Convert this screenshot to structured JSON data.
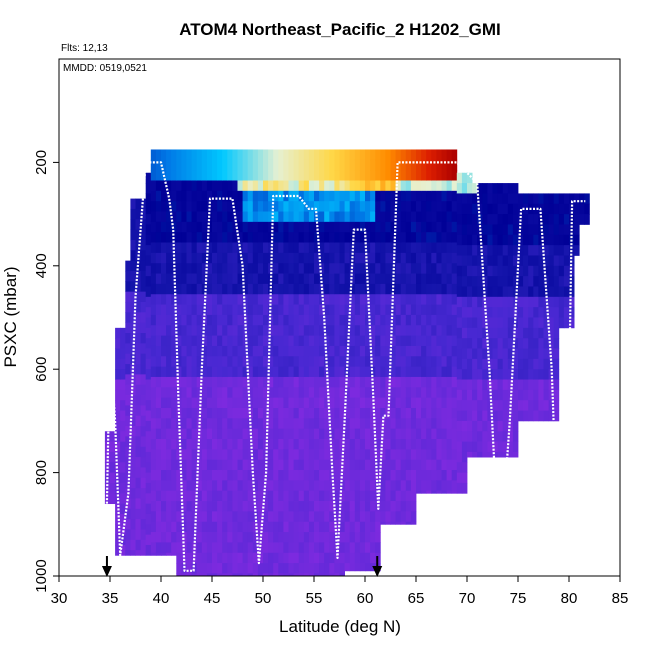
{
  "chart_data": {
    "type": "heatmap",
    "title": "ATOM4 Northeast_Pacific_2 H1202_GMI",
    "flights_label": "Flts: 12,13",
    "mmdd_label": "MMDD: 0519,0521",
    "xlabel": "Latitude (deg N)",
    "ylabel": "PSXC (mbar)",
    "xlim": [
      30,
      85
    ],
    "ylim": [
      1000,
      0
    ],
    "x_ticks": [
      "30",
      "35",
      "40",
      "45",
      "50",
      "55",
      "60",
      "65",
      "70",
      "75",
      "80",
      "85"
    ],
    "y_ticks": [
      "200",
      "400",
      "600",
      "800",
      "1000"
    ],
    "y_tick_values": [
      200,
      400,
      600,
      800,
      1000
    ],
    "arrow_latitudes": [
      34.7,
      61.2
    ],
    "legend": "none",
    "grid": false,
    "colors": {
      "low": "#8a2be2",
      "mid_low": "#1a1aa8",
      "mid": "#00bfff",
      "mid_high": "#ffd24a",
      "high": "#b30000",
      "flight_track": "#ffffff"
    },
    "flight_track": [
      {
        "lat": 34.7,
        "p": 860
      },
      {
        "lat": 35.0,
        "p": 550
      },
      {
        "lat": 35.5,
        "p": 700
      },
      {
        "lat": 36.0,
        "p": 960
      },
      {
        "lat": 36.8,
        "p": 840
      },
      {
        "lat": 37.5,
        "p": 460
      },
      {
        "lat": 38.5,
        "p": 200
      },
      {
        "lat": 40.0,
        "p": 200
      },
      {
        "lat": 40.8,
        "p": 270
      },
      {
        "lat": 41.2,
        "p": 330
      },
      {
        "lat": 41.7,
        "p": 650
      },
      {
        "lat": 42.3,
        "p": 990
      },
      {
        "lat": 43.2,
        "p": 990
      },
      {
        "lat": 44.0,
        "p": 600
      },
      {
        "lat": 44.8,
        "p": 270
      },
      {
        "lat": 47.0,
        "p": 270
      },
      {
        "lat": 48.0,
        "p": 400
      },
      {
        "lat": 49.0,
        "p": 800
      },
      {
        "lat": 49.6,
        "p": 975
      },
      {
        "lat": 50.3,
        "p": 800
      },
      {
        "lat": 51.0,
        "p": 265
      },
      {
        "lat": 53.5,
        "p": 265
      },
      {
        "lat": 54.5,
        "p": 290
      },
      {
        "lat": 55.2,
        "p": 290
      },
      {
        "lat": 56.0,
        "p": 500
      },
      {
        "lat": 56.8,
        "p": 800
      },
      {
        "lat": 57.3,
        "p": 965
      },
      {
        "lat": 58.0,
        "p": 700
      },
      {
        "lat": 58.9,
        "p": 330
      },
      {
        "lat": 60.0,
        "p": 330
      },
      {
        "lat": 60.8,
        "p": 650
      },
      {
        "lat": 61.3,
        "p": 870
      },
      {
        "lat": 61.8,
        "p": 690
      },
      {
        "lat": 62.3,
        "p": 690
      },
      {
        "lat": 63.2,
        "p": 200
      },
      {
        "lat": 69.0,
        "p": 200
      },
      {
        "lat": 70.0,
        "p": 220
      },
      {
        "lat": 71.0,
        "p": 240
      },
      {
        "lat": 72.2,
        "p": 600
      },
      {
        "lat": 73.2,
        "p": 980
      },
      {
        "lat": 74.2,
        "p": 700
      },
      {
        "lat": 75.3,
        "p": 290
      },
      {
        "lat": 77.2,
        "p": 290
      },
      {
        "lat": 78.3,
        "p": 600
      },
      {
        "lat": 79.0,
        "p": 980
      },
      {
        "lat": 79.8,
        "p": 880
      },
      {
        "lat": 80.3,
        "p": 275
      },
      {
        "lat": 81.6,
        "p": 275
      }
    ]
  }
}
